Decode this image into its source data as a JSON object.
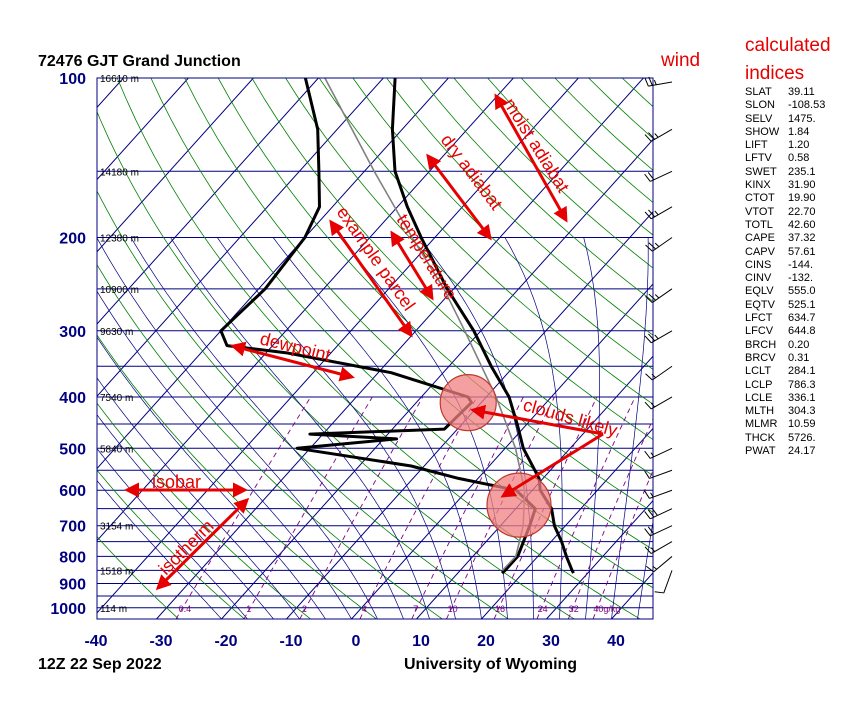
{
  "chart_data": {
    "type": "skew-t log-p sounding diagram",
    "title": "72476 GJT Grand Junction",
    "date_label": "12Z 22 Sep 2022",
    "source_label": "University of Wyoming",
    "xlabel": "",
    "ylabel": "",
    "x_ticks": [
      -40,
      -30,
      -20,
      -10,
      0,
      10,
      20,
      30,
      40
    ],
    "xlim": [
      -40,
      45
    ],
    "pressure_ticks": [
      100,
      200,
      300,
      400,
      500,
      600,
      700,
      800,
      900,
      1000
    ],
    "ylim": [
      1050,
      100
    ],
    "heights": [
      {
        "p": 100,
        "label": "16610 m"
      },
      {
        "p": 150,
        "label": "14180 m"
      },
      {
        "p": 200,
        "label": "12380 m"
      },
      {
        "p": 250,
        "label": "10900 m"
      },
      {
        "p": 300,
        "label": "9630 m"
      },
      {
        "p": 400,
        "label": "7540 m"
      },
      {
        "p": 500,
        "label": "5840 m"
      },
      {
        "p": 700,
        "label": "3154 m"
      },
      {
        "p": 850,
        "label": "1518 m"
      },
      {
        "p": 1000,
        "label": "114 m"
      }
    ],
    "mixing_ratio_labels": [
      {
        "w": 0.4,
        "label": "0.4"
      },
      {
        "w": 1,
        "label": "1"
      },
      {
        "w": 2,
        "label": "2"
      },
      {
        "w": 4,
        "label": "4"
      },
      {
        "w": 7,
        "label": "7"
      },
      {
        "w": 10,
        "label": "10"
      },
      {
        "w": 16,
        "label": "16"
      },
      {
        "w": 24,
        "label": "24"
      },
      {
        "w": 32,
        "label": "32"
      },
      {
        "w": 40,
        "label": "40g/kg"
      }
    ],
    "series": [
      {
        "name": "temperature",
        "points": [
          [
            860,
            27.8
          ],
          [
            850,
            27.2
          ],
          [
            800,
            24.4
          ],
          [
            750,
            21.6
          ],
          [
            700,
            18.3
          ],
          [
            650,
            15.5
          ],
          [
            600,
            11.2
          ],
          [
            570,
            9.4
          ],
          [
            500,
            2.8
          ],
          [
            450,
            -1.5
          ],
          [
            400,
            -6.5
          ],
          [
            350,
            -13.5
          ],
          [
            300,
            -21.1
          ],
          [
            250,
            -31.0
          ],
          [
            200,
            -42.1
          ],
          [
            175,
            -48.5
          ],
          [
            150,
            -55.3
          ],
          [
            125,
            -61.5
          ],
          [
            100,
            -68.2
          ]
        ]
      },
      {
        "name": "dewpoint",
        "points": [
          [
            860,
            16.8
          ],
          [
            850,
            16.9
          ],
          [
            800,
            16.9
          ],
          [
            700,
            14.5
          ],
          [
            650,
            13.0
          ],
          [
            600,
            7.5
          ],
          [
            570,
            -3.0
          ],
          [
            540,
            -12.0
          ],
          [
            500,
            -32.0
          ],
          [
            480,
            -18.0
          ],
          [
            470,
            -32.0
          ],
          [
            460,
            -12.0
          ],
          [
            410,
            -11.5
          ],
          [
            400,
            -12.8
          ],
          [
            360,
            -28.0
          ],
          [
            330,
            -47.0
          ],
          [
            320,
            -57.0
          ],
          [
            300,
            -60.0
          ],
          [
            250,
            -59.0
          ],
          [
            200,
            -60.0
          ],
          [
            175,
            -62.0
          ],
          [
            150,
            -67.0
          ],
          [
            125,
            -73.0
          ],
          [
            100,
            -82.0
          ]
        ]
      },
      {
        "name": "example parcel",
        "points": [
          [
            850,
            16.5
          ],
          [
            800,
            16.6
          ],
          [
            786,
            16.2
          ],
          [
            700,
            13.5
          ],
          [
            600,
            8.8
          ],
          [
            500,
            1.6
          ],
          [
            400,
            -8.5
          ],
          [
            300,
            -22.5
          ],
          [
            250,
            -31.5
          ],
          [
            200,
            -43.5
          ],
          [
            150,
            -58.5
          ],
          [
            100,
            -79.0
          ]
        ]
      }
    ],
    "wind_barbs": [
      {
        "p": 850,
        "dir": 200,
        "spd": 10
      },
      {
        "p": 800,
        "dir": 230,
        "spd": 15
      },
      {
        "p": 750,
        "dir": 240,
        "spd": 15
      },
      {
        "p": 700,
        "dir": 245,
        "spd": 20
      },
      {
        "p": 650,
        "dir": 245,
        "spd": 30
      },
      {
        "p": 600,
        "dir": 250,
        "spd": 15
      },
      {
        "p": 550,
        "dir": 250,
        "spd": 10
      },
      {
        "p": 500,
        "dir": 245,
        "spd": 15
      },
      {
        "p": 400,
        "dir": 240,
        "spd": 15
      },
      {
        "p": 350,
        "dir": 235,
        "spd": 15
      },
      {
        "p": 300,
        "dir": 240,
        "spd": 25
      },
      {
        "p": 250,
        "dir": 235,
        "spd": 25
      },
      {
        "p": 200,
        "dir": 235,
        "spd": 25
      },
      {
        "p": 175,
        "dir": 240,
        "spd": 25
      },
      {
        "p": 150,
        "dir": 245,
        "spd": 20
      },
      {
        "p": 125,
        "dir": 240,
        "spd": 25
      },
      {
        "p": 100,
        "dir": 260,
        "spd": 25
      }
    ],
    "annotations": [
      {
        "id": "wind",
        "text": "wind"
      },
      {
        "id": "indices-title-1",
        "text": "calculated"
      },
      {
        "id": "indices-title-2",
        "text": "indices"
      },
      {
        "id": "moist-adiabat",
        "text": "moist adiabat"
      },
      {
        "id": "dry-adiabat",
        "text": "dry adiabat"
      },
      {
        "id": "example-parcel",
        "text": "example parcel"
      },
      {
        "id": "temperature",
        "text": "temperature"
      },
      {
        "id": "dewpoint",
        "text": "dewpoint"
      },
      {
        "id": "clouds-likely",
        "text": "clouds likely"
      },
      {
        "id": "isobar",
        "text": "isobar"
      },
      {
        "id": "isotherm",
        "text": "isotherm"
      }
    ],
    "cloud_regions": [
      {
        "p": 410,
        "t": -12.0
      },
      {
        "p": 640,
        "t": 10.0
      }
    ],
    "colors": {
      "isobar": "#000080",
      "isotherm": "#000080",
      "dry_adiabat": "#008000",
      "moist_adiabat": "#000080",
      "mixing_ratio": "#800080",
      "axis_label": "#000080",
      "annotation": "#e60000",
      "cloud_fill": "#f08080",
      "temperature": "#000000",
      "dewpoint": "#000000",
      "parcel": "#808080"
    }
  },
  "indices": [
    {
      "name": "SLAT",
      "value": "39.11"
    },
    {
      "name": "SLON",
      "value": "-108.53"
    },
    {
      "name": "SELV",
      "value": "1475."
    },
    {
      "name": "SHOW",
      "value": "1.84"
    },
    {
      "name": "LIFT",
      "value": "1.20"
    },
    {
      "name": "LFTV",
      "value": "0.58"
    },
    {
      "name": "SWET",
      "value": "235.1"
    },
    {
      "name": "KINX",
      "value": "31.90"
    },
    {
      "name": "CTOT",
      "value": "19.90"
    },
    {
      "name": "VTOT",
      "value": "22.70"
    },
    {
      "name": "TOTL",
      "value": "42.60"
    },
    {
      "name": "CAPE",
      "value": "37.32"
    },
    {
      "name": "CAPV",
      "value": "57.61"
    },
    {
      "name": "CINS",
      "value": "-144."
    },
    {
      "name": "CINV",
      "value": "-132."
    },
    {
      "name": "EQLV",
      "value": "555.0"
    },
    {
      "name": "EQTV",
      "value": "525.1"
    },
    {
      "name": "LFCT",
      "value": "634.7"
    },
    {
      "name": "LFCV",
      "value": "644.8"
    },
    {
      "name": "BRCH",
      "value": "0.20"
    },
    {
      "name": "BRCV",
      "value": "0.31"
    },
    {
      "name": "LCLT",
      "value": "284.1"
    },
    {
      "name": "LCLP",
      "value": "786.3"
    },
    {
      "name": "LCLE",
      "value": "336.1"
    },
    {
      "name": "MLTH",
      "value": "304.3"
    },
    {
      "name": "MLMR",
      "value": "10.59"
    },
    {
      "name": "THCK",
      "value": "5726."
    },
    {
      "name": "PWAT",
      "value": "24.17"
    }
  ]
}
